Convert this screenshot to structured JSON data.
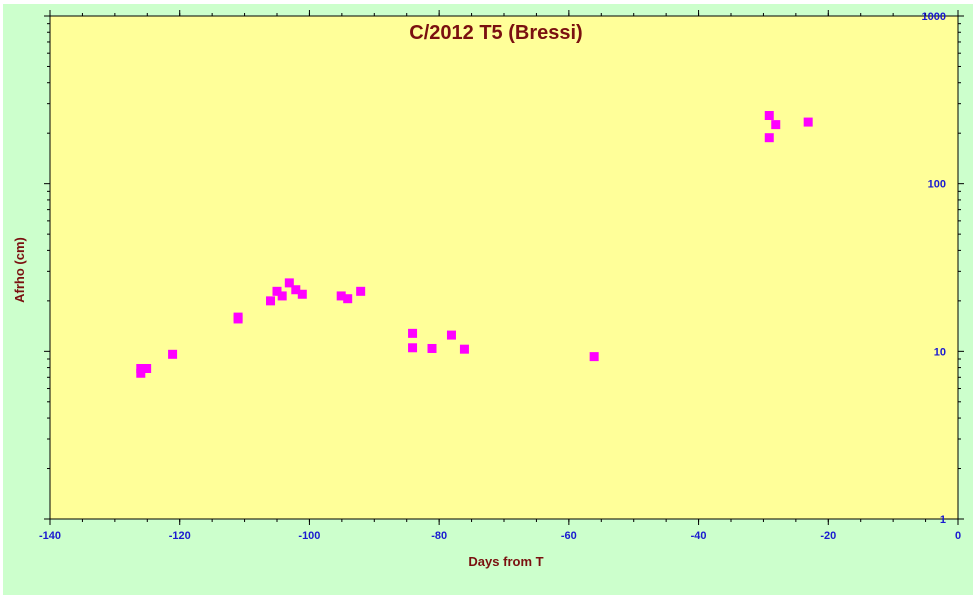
{
  "chart_data": {
    "type": "scatter",
    "title": "C/2012  T5 (Bressi)",
    "xlabel": "Days from  T",
    "ylabel": "Afrho (cm)",
    "xlim": [
      -140,
      0
    ],
    "ylim": [
      1,
      1000
    ],
    "yscale": "log",
    "x_ticks": [
      "-140",
      "-120",
      "-100",
      "-80",
      "-60",
      "-40",
      "-20",
      "0"
    ],
    "y_ticks": [
      "1",
      "10",
      "100",
      "1000"
    ],
    "grid": false,
    "marker": "square",
    "colors": {
      "background": "#ccffcc",
      "plot_area": "#ffff99",
      "marker": "#ff00ff",
      "title": "#7a1010",
      "tick_labels": "#1a1ad0"
    },
    "points": [
      {
        "x": -126.0,
        "y": 7.9
      },
      {
        "x": -126.0,
        "y": 7.4
      },
      {
        "x": -125.1,
        "y": 7.9
      },
      {
        "x": -121.1,
        "y": 9.6
      },
      {
        "x": -111.0,
        "y": 16.0
      },
      {
        "x": -111.0,
        "y": 15.6
      },
      {
        "x": -106.0,
        "y": 20.0
      },
      {
        "x": -105.0,
        "y": 22.8
      },
      {
        "x": -104.2,
        "y": 21.4
      },
      {
        "x": -103.1,
        "y": 25.6
      },
      {
        "x": -102.1,
        "y": 23.3
      },
      {
        "x": -101.1,
        "y": 21.9
      },
      {
        "x": -95.1,
        "y": 21.4
      },
      {
        "x": -94.1,
        "y": 20.6
      },
      {
        "x": -92.1,
        "y": 22.8
      },
      {
        "x": -84.1,
        "y": 12.8
      },
      {
        "x": -84.1,
        "y": 10.5
      },
      {
        "x": -81.1,
        "y": 10.4
      },
      {
        "x": -78.1,
        "y": 12.5
      },
      {
        "x": -76.1,
        "y": 10.3
      },
      {
        "x": -56.1,
        "y": 9.3
      },
      {
        "x": -29.1,
        "y": 255
      },
      {
        "x": -29.1,
        "y": 188
      },
      {
        "x": -28.1,
        "y": 225
      },
      {
        "x": -23.1,
        "y": 233
      }
    ]
  }
}
